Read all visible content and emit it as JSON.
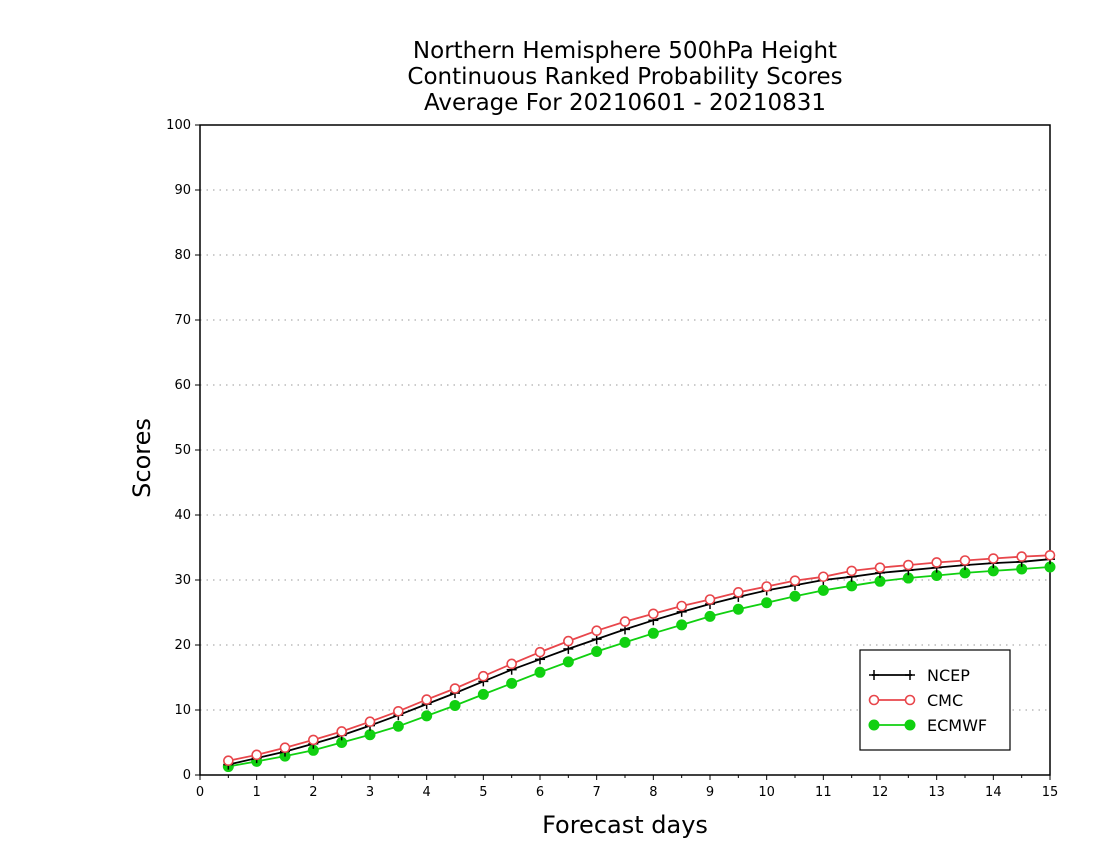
{
  "chart_data": {
    "type": "line",
    "title_lines": [
      "Northern Hemisphere 500hPa Height",
      "Continuous Ranked Probability Scores",
      "Average For 20210601 - 20210831"
    ],
    "xlabel": "Forecast days",
    "ylabel": "Scores",
    "xlim": [
      0,
      15
    ],
    "ylim": [
      0,
      100
    ],
    "x_ticks": [
      "0",
      "1",
      "2",
      "3",
      "4",
      "5",
      "6",
      "7",
      "8",
      "9",
      "10",
      "11",
      "12",
      "13",
      "14",
      "15"
    ],
    "y_ticks": [
      "0",
      "10",
      "20",
      "30",
      "40",
      "50",
      "60",
      "70",
      "80",
      "90",
      "100"
    ],
    "grid": "horizontal dotted",
    "legend_position": "bottom-right",
    "x": [
      0.5,
      1,
      1.5,
      2,
      2.5,
      3,
      3.5,
      4,
      4.5,
      5,
      5.5,
      6,
      6.5,
      7,
      7.5,
      8,
      8.5,
      9,
      9.5,
      10,
      10.5,
      11,
      11.5,
      12,
      12.5,
      13,
      13.5,
      14,
      14.5,
      15
    ],
    "series": [
      {
        "name": "NCEP",
        "color": "#000000",
        "marker": "plus",
        "values": [
          1.6,
          2.6,
          3.6,
          4.8,
          6.1,
          7.6,
          9.2,
          10.9,
          12.6,
          14.4,
          16.2,
          17.8,
          19.4,
          20.9,
          22.4,
          23.8,
          25.1,
          26.3,
          27.4,
          28.4,
          29.2,
          30.0,
          30.5,
          31.1,
          31.5,
          31.9,
          32.3,
          32.6,
          32.8,
          33.2
        ]
      },
      {
        "name": "CMC",
        "color": "#e8464b",
        "marker": "open-circle",
        "values": [
          2.2,
          3.1,
          4.2,
          5.4,
          6.7,
          8.2,
          9.8,
          11.6,
          13.3,
          15.2,
          17.1,
          18.9,
          20.6,
          22.2,
          23.6,
          24.8,
          26.0,
          27.0,
          28.1,
          29.0,
          29.9,
          30.5,
          31.4,
          31.9,
          32.3,
          32.7,
          33.0,
          33.3,
          33.6,
          33.8
        ]
      },
      {
        "name": "ECMWF",
        "color": "#10d010",
        "marker": "filled-circle",
        "values": [
          1.3,
          2.1,
          2.9,
          3.8,
          5.0,
          6.2,
          7.5,
          9.1,
          10.7,
          12.4,
          14.1,
          15.8,
          17.4,
          19.0,
          20.4,
          21.8,
          23.1,
          24.4,
          25.5,
          26.5,
          27.5,
          28.4,
          29.1,
          29.8,
          30.3,
          30.7,
          31.1,
          31.4,
          31.7,
          32.0
        ]
      }
    ]
  }
}
